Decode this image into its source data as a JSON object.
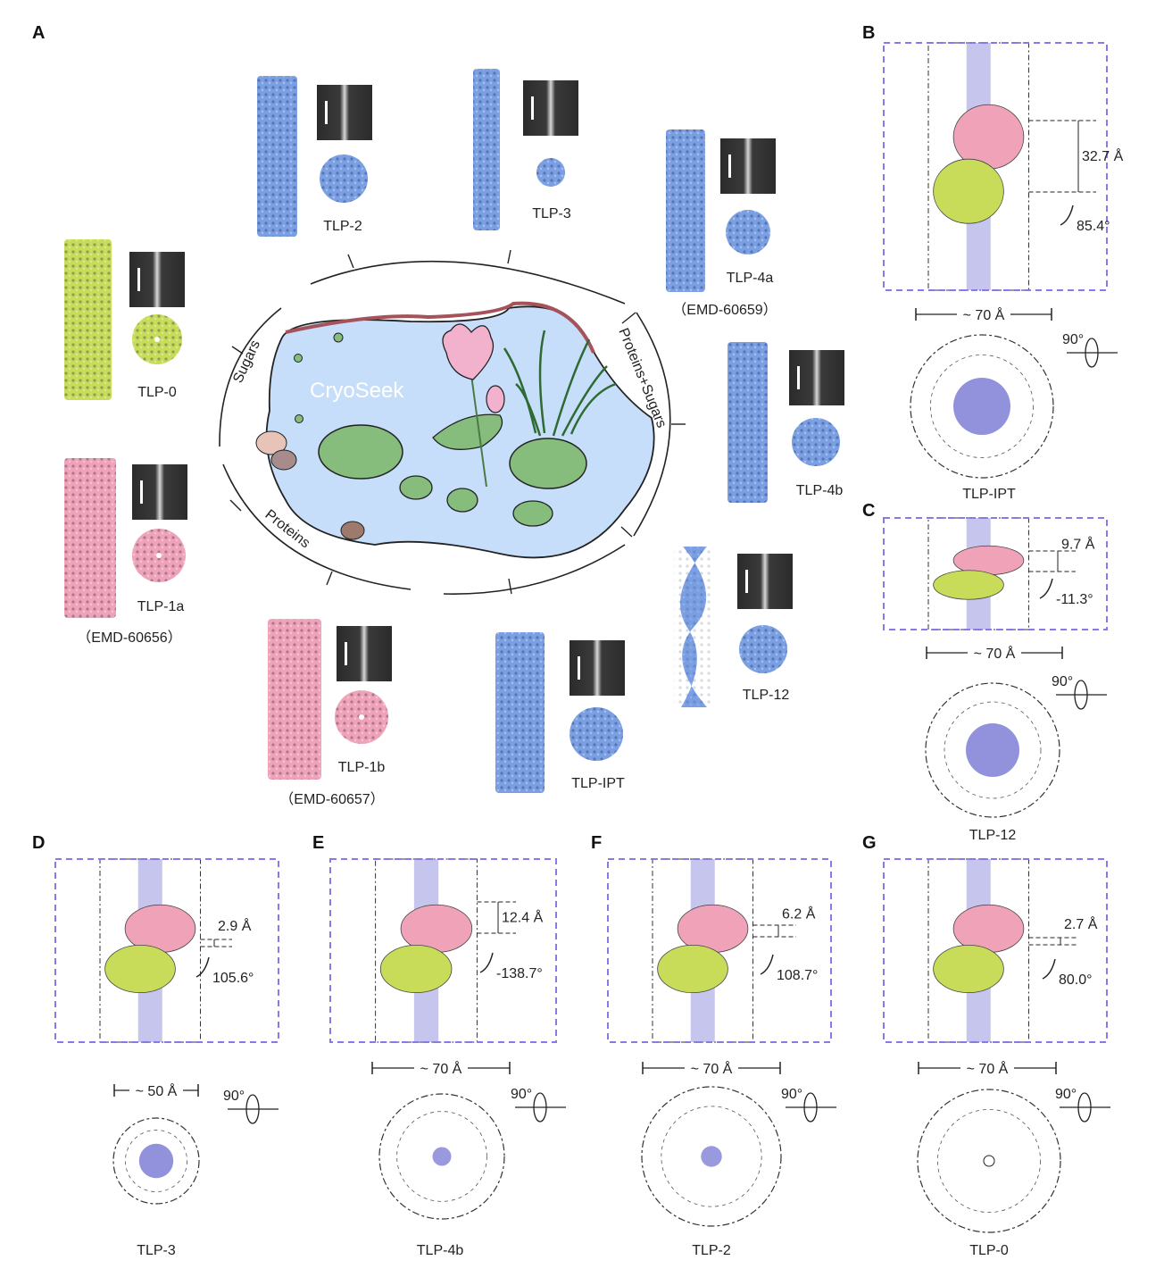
{
  "colors": {
    "blue": "#7a9fe3",
    "pink": "#f0a3b8",
    "green": "#c8dc5a",
    "purple_core": "#7f7fd6",
    "dashed_box": "#8a78e6",
    "pond_water": "#c6defa",
    "pond_rim": "#a5525a",
    "lily_pad": "#86bd7d"
  },
  "panel_A": {
    "label": "A",
    "center_title": "CryoSeek",
    "ring_labels": [
      "Sugars",
      "Proteins+Sugars",
      "Proteins"
    ],
    "structures": [
      {
        "name": "TLP-2",
        "color": "blue"
      },
      {
        "name": "TLP-3",
        "color": "blue"
      },
      {
        "name": "TLP-4a",
        "color": "blue",
        "emd": "（EMD-60659）"
      },
      {
        "name": "TLP-0",
        "color": "green"
      },
      {
        "name": "TLP-1a",
        "color": "pink",
        "emd": "（EMD-60656）"
      },
      {
        "name": "TLP-1b",
        "color": "pink",
        "emd": "（EMD-60657）"
      },
      {
        "name": "TLP-IPT",
        "color": "blue"
      },
      {
        "name": "TLP-12",
        "color": "blue"
      },
      {
        "name": "TLP-4b",
        "color": "blue"
      }
    ]
  },
  "detail_panels": [
    {
      "label": "B",
      "name": "TLP-IPT",
      "rise": "32.7 Å",
      "twist": "85.4°",
      "diameter": "~ 70 Å",
      "rotation": "90°"
    },
    {
      "label": "C",
      "name": "TLP-12",
      "rise": "9.7 Å",
      "twist": "-11.3°",
      "diameter": "~ 70 Å",
      "rotation": "90°"
    },
    {
      "label": "D",
      "name": "TLP-3",
      "rise": "2.9 Å",
      "twist": "105.6°",
      "diameter": "~ 50 Å",
      "rotation": "90°"
    },
    {
      "label": "E",
      "name": "TLP-4b",
      "rise": "12.4 Å",
      "twist": "-138.7°",
      "diameter": "~ 70 Å",
      "rotation": "90°"
    },
    {
      "label": "F",
      "name": "TLP-2",
      "rise": "6.2 Å",
      "twist": "108.7°",
      "diameter": "~ 70 Å",
      "rotation": "90°"
    },
    {
      "label": "G",
      "name": "TLP-0",
      "rise": "2.7 Å",
      "twist": "80.0°",
      "diameter": "~ 70 Å",
      "rotation": "90°"
    }
  ]
}
